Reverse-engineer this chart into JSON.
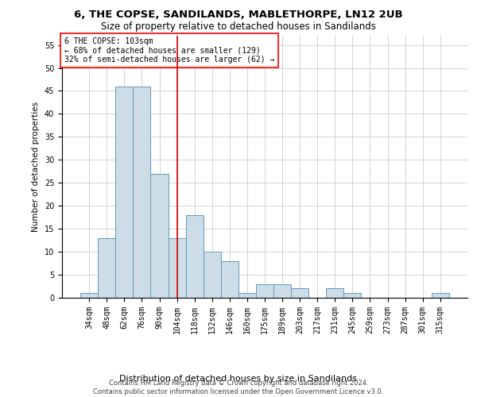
{
  "title_line1": "6, THE COPSE, SANDILANDS, MABLETHORPE, LN12 2UB",
  "title_line2": "Size of property relative to detached houses in Sandilands",
  "xlabel": "Distribution of detached houses by size in Sandilands",
  "ylabel": "Number of detached properties",
  "bar_color": "#ccdde8",
  "bar_edge_color": "#6699bb",
  "vline_color": "#cc0000",
  "vline_x": 5,
  "annotation_text": "6 THE COPSE: 103sqm\n← 68% of detached houses are smaller (129)\n32% of semi-detached houses are larger (62) →",
  "categories": [
    "34sqm",
    "48sqm",
    "62sqm",
    "76sqm",
    "90sqm",
    "104sqm",
    "118sqm",
    "132sqm",
    "146sqm",
    "160sqm",
    "175sqm",
    "189sqm",
    "203sqm",
    "217sqm",
    "231sqm",
    "245sqm",
    "259sqm",
    "273sqm",
    "287sqm",
    "301sqm",
    "315sqm"
  ],
  "values": [
    1,
    13,
    46,
    46,
    27,
    13,
    18,
    10,
    8,
    1,
    3,
    3,
    2,
    0,
    2,
    1,
    0,
    0,
    0,
    0,
    1
  ],
  "ylim": [
    0,
    57
  ],
  "yticks": [
    0,
    5,
    10,
    15,
    20,
    25,
    30,
    35,
    40,
    45,
    50,
    55
  ],
  "footnote": "Contains HM Land Registry data © Crown copyright and database right 2024.\nContains public sector information licensed under the Open Government Licence v3.0.",
  "background_color": "#ffffff",
  "grid_color": "#cccccc",
  "title_fontsize": 9.5,
  "subtitle_fontsize": 8.5,
  "ylabel_fontsize": 7.5,
  "xlabel_fontsize": 8,
  "tick_fontsize": 7,
  "annot_fontsize": 7,
  "footnote_fontsize": 6
}
